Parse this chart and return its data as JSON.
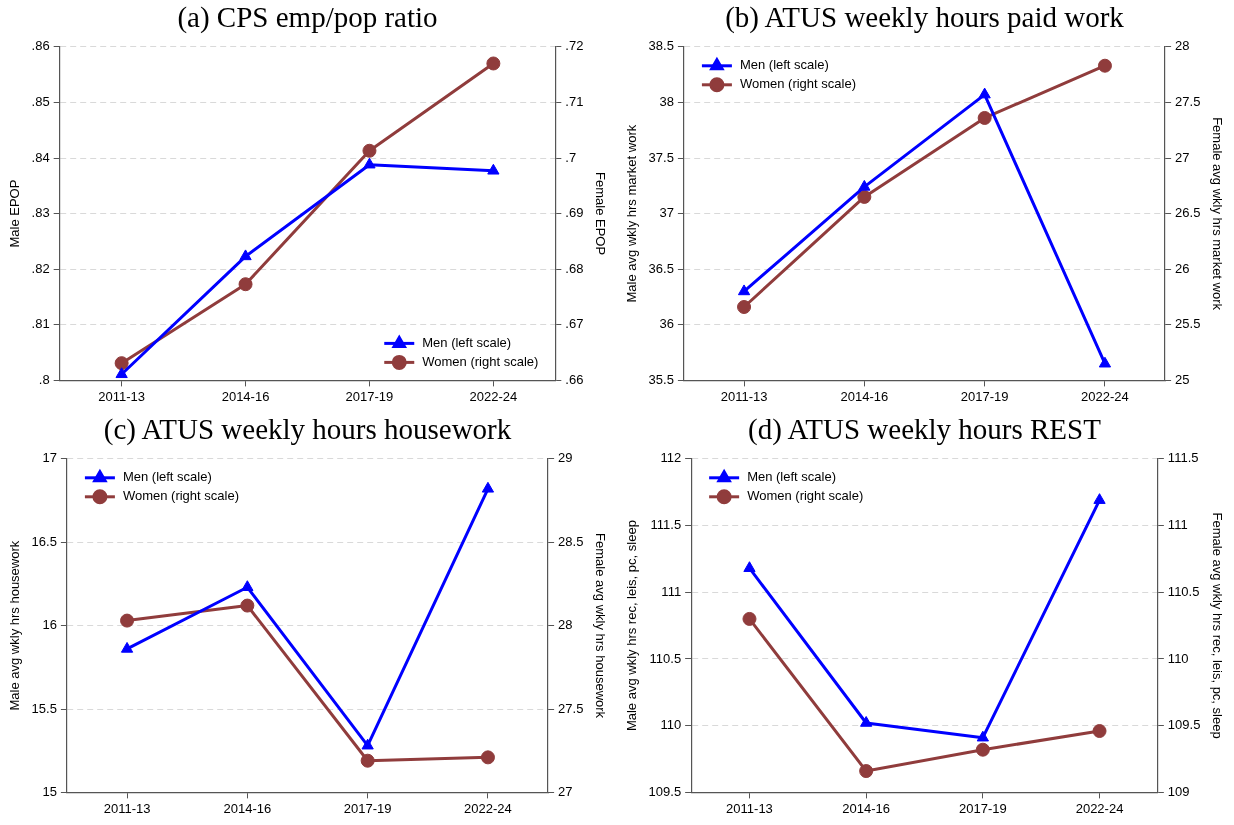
{
  "chart_data": [
    {
      "type": "line",
      "title": "(a) CPS emp/pop ratio",
      "ylabel": "Male EPOP",
      "y2label": "Female EPOP",
      "categories": [
        "2011-13",
        "2014-16",
        "2017-19",
        "2022-24"
      ],
      "ylim": [
        0.8,
        0.86
      ],
      "yticks": [
        {
          "value": 0.8,
          "label": ".8"
        },
        {
          "value": 0.81,
          "label": ".81"
        },
        {
          "value": 0.82,
          "label": ".82"
        },
        {
          "value": 0.83,
          "label": ".83"
        },
        {
          "value": 0.84,
          "label": ".84"
        },
        {
          "value": 0.85,
          "label": ".85"
        },
        {
          "value": 0.86,
          "label": ".86"
        }
      ],
      "y2lim": [
        0.66,
        0.72
      ],
      "y2ticks": [
        {
          "value": 0.66,
          "label": ".66"
        },
        {
          "value": 0.67,
          "label": ".67"
        },
        {
          "value": 0.68,
          "label": ".68"
        },
        {
          "value": 0.69,
          "label": ".69"
        },
        {
          "value": 0.7,
          "label": ".7"
        },
        {
          "value": 0.71,
          "label": ".71"
        },
        {
          "value": 0.72,
          "label": ".72"
        }
      ],
      "grid": "y",
      "legend": "bottom right",
      "line_style": "solid",
      "series": [
        {
          "name": "Men (left scale)",
          "color": "#0000ff",
          "marker": "triangle",
          "values": [
            0.8011,
            0.8223,
            0.8388,
            0.8377
          ]
        },
        {
          "name": "Women (right scale)",
          "color": "#903c3c",
          "marker": "circle",
          "axis": "y2",
          "values": [
            0.6631,
            0.6773,
            0.7013,
            0.717
          ]
        }
      ]
    },
    {
      "type": "line",
      "title": "(b) ATUS weekly hours paid work",
      "ylabel": "Male avg wkly hrs market work",
      "y2label": "Female avg wkly hrs market work",
      "categories": [
        "2011-13",
        "2014-16",
        "2017-19",
        "2022-24"
      ],
      "ylim": [
        35.5,
        38.5
      ],
      "yticks": [
        35.5,
        36,
        36.5,
        37,
        37.5,
        38,
        38.5
      ],
      "y2lim": [
        25,
        28
      ],
      "y2ticks": [
        25,
        25.5,
        26,
        26.5,
        27,
        27.5,
        28
      ],
      "grid": "y",
      "legend": "top left",
      "line_style": "solid",
      "series": [
        {
          "name": "Men (left scale)",
          "color": "#0000ff",
          "marker": "triangle",
          "values": [
            36.3,
            37.24,
            38.07,
            35.65
          ]
        },
        {
          "name": "Women (right scale)",
          "color": "#903c3c",
          "marker": "circle",
          "axis": "y2",
          "values": [
            25.66,
            26.65,
            27.36,
            27.83
          ]
        }
      ]
    },
    {
      "type": "line",
      "title": "(c) ATUS weekly hours housework",
      "ylabel": "Male avg wkly hrs housework",
      "y2label": "Female avg wkly hrs housework",
      "categories": [
        "2011-13",
        "2014-16",
        "2017-19",
        "2022-24"
      ],
      "ylim": [
        15,
        17
      ],
      "yticks": [
        15,
        15.5,
        16,
        16.5,
        17
      ],
      "y2lim": [
        27,
        29
      ],
      "y2ticks": [
        27,
        27.5,
        28,
        28.5,
        29
      ],
      "grid": "y",
      "legend": "top left",
      "line_style": "solid",
      "series": [
        {
          "name": "Men (left scale)",
          "color": "#0000ff",
          "marker": "triangle",
          "values": [
            15.86,
            16.23,
            15.28,
            16.82
          ]
        },
        {
          "name": "Women (right scale)",
          "color": "#903c3c",
          "marker": "circle",
          "axis": "y2",
          "values": [
            28.03,
            28.12,
            27.19,
            27.21
          ]
        }
      ]
    },
    {
      "type": "line",
      "title": "(d) ATUS weekly hours REST",
      "ylabel": "Male avg wkly hrs rec, leis, pc, sleep",
      "y2label": "Female avg wkly hrs rec, leis, pc, sleep",
      "categories": [
        "2011-13",
        "2014-16",
        "2017-19",
        "2022-24"
      ],
      "ylim": [
        109.5,
        112
      ],
      "yticks": [
        109.5,
        110,
        110.5,
        111,
        111.5,
        112
      ],
      "y2lim": [
        109,
        111.5
      ],
      "y2ticks": [
        109,
        109.5,
        110,
        110.5,
        111,
        111.5
      ],
      "grid": "y",
      "legend": "top left",
      "line_style": "solid",
      "series": [
        {
          "name": "Men (left scale)",
          "color": "#0000ff",
          "marker": "triangle",
          "values": [
            111.18,
            110.02,
            109.91,
            111.69
          ]
        },
        {
          "name": "Women (right scale)",
          "color": "#903c3c",
          "marker": "circle",
          "axis": "y2",
          "values": [
            110.3,
            109.16,
            109.32,
            109.46
          ]
        }
      ]
    }
  ]
}
